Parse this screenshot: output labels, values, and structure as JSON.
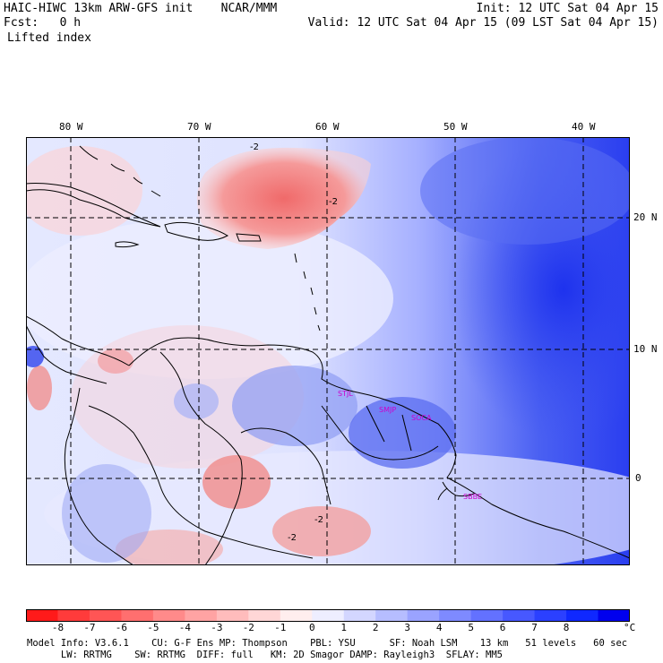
{
  "header": {
    "title_left": "HAIC-HIWC 13km ARW-GFS init    NCAR/MMM",
    "fcst": "Fcst:   0 h",
    "field": "Lifted index",
    "init": "Init: 12 UTC Sat 04 Apr 15",
    "valid": "Valid: 12 UTC Sat 04 Apr 15 (09 LST Sat 04 Apr 15)"
  },
  "axes": {
    "lon_labels": [
      "80 W",
      "70 W",
      "60 W",
      "50 W",
      "40 W"
    ],
    "lat_labels": [
      "20 N",
      "10 N",
      "0"
    ]
  },
  "stations": [
    "STJL",
    "SMJP",
    "SOCA",
    "SBBE"
  ],
  "contour_labels": [
    "-2",
    "-2",
    "-2",
    "-2"
  ],
  "colorbar": {
    "ticks": [
      "-8",
      "-7",
      "-6",
      "-5",
      "-4",
      "-3",
      "-2",
      "-1",
      "0",
      "1",
      "2",
      "3",
      "4",
      "5",
      "6",
      "7",
      "8"
    ],
    "unit": "°C",
    "colors": [
      "#ff1a1a",
      "#ff3b3b",
      "#ff5555",
      "#ff6f6f",
      "#ff8a8a",
      "#ffa3a3",
      "#ffbcbc",
      "#ffd6d6",
      "#ffeeee",
      "#eeeeff",
      "#d3d6ff",
      "#b6bdff",
      "#9aa3ff",
      "#7e8aff",
      "#6371ff",
      "#4758ff",
      "#2b40ff",
      "#0f28ff",
      "#0000ee"
    ]
  },
  "footer": {
    "line1": "Model Info: V3.6.1    CU: G-F Ens MP: Thompson    PBL: YSU      SF: Noah LSM    13 km   51 levels   60 sec",
    "line2": "      LW: RRTMG    SW: RRTMG  DIFF: full   KM: 2D Smagor DAMP: Rayleigh3  SFLAY: MM5"
  },
  "colors": {
    "unstable": "#f07878",
    "stable_strong": "#2030ee",
    "stable_mid": "#8090f0",
    "neutral": "#eef0ff",
    "station_text": "#cc00cc"
  }
}
